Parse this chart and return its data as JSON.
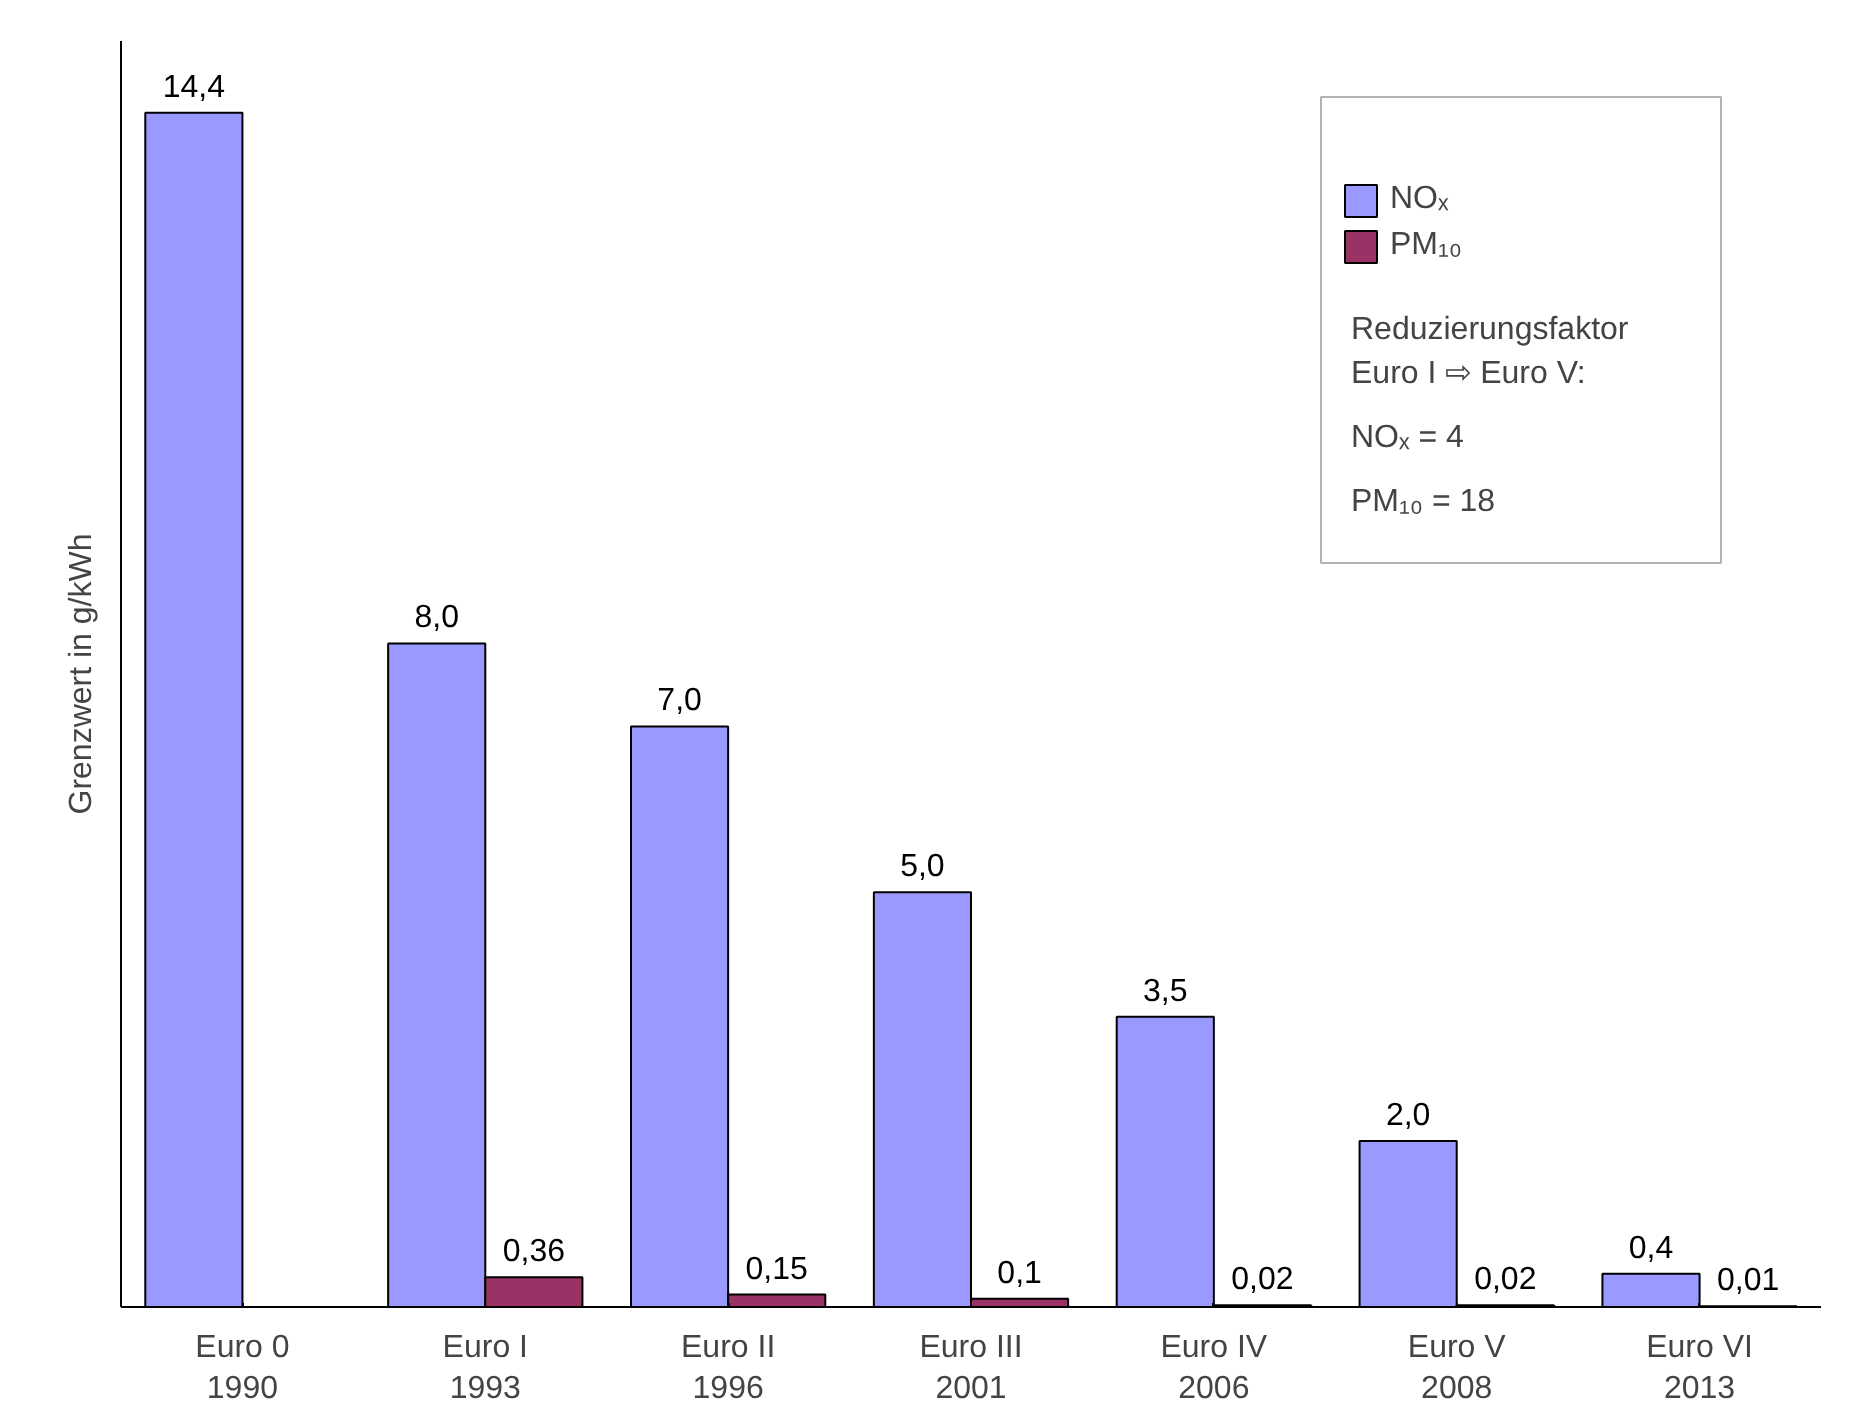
{
  "chart_data": {
    "type": "bar",
    "ylabel": "Grenzwert in g/kWh",
    "categories": [
      "Euro 0\n1990",
      "Euro I\n1993",
      "Euro II\n1996",
      "Euro III\n2001",
      "Euro IV\n2006",
      "Euro V\n2008",
      "Euro VI\n2013"
    ],
    "series": [
      {
        "name": "NOₓ",
        "color": "#9999ff",
        "values": [
          14.4,
          8.0,
          7.0,
          5.0,
          3.5,
          2.0,
          0.4
        ],
        "value_labels": [
          "14,4",
          "8,0",
          "7,0",
          "5,0",
          "3,5",
          "2,0",
          "0,4"
        ]
      },
      {
        "name": "PM₁₀",
        "color": "#993366",
        "values": [
          null,
          0.36,
          0.15,
          0.1,
          0.02,
          0.02,
          0.01
        ],
        "value_labels": [
          null,
          "0,36",
          "0,15",
          "0,1",
          "0,02",
          "0,02",
          "0,01"
        ]
      }
    ],
    "annotations": [
      "Reduzierungsfaktor",
      "Euro I ⇨ Euro V:",
      "NOₓ = 4",
      "PM₁₀ = 18"
    ],
    "legend": "top right",
    "grid": false,
    "tick_labels": "x"
  }
}
